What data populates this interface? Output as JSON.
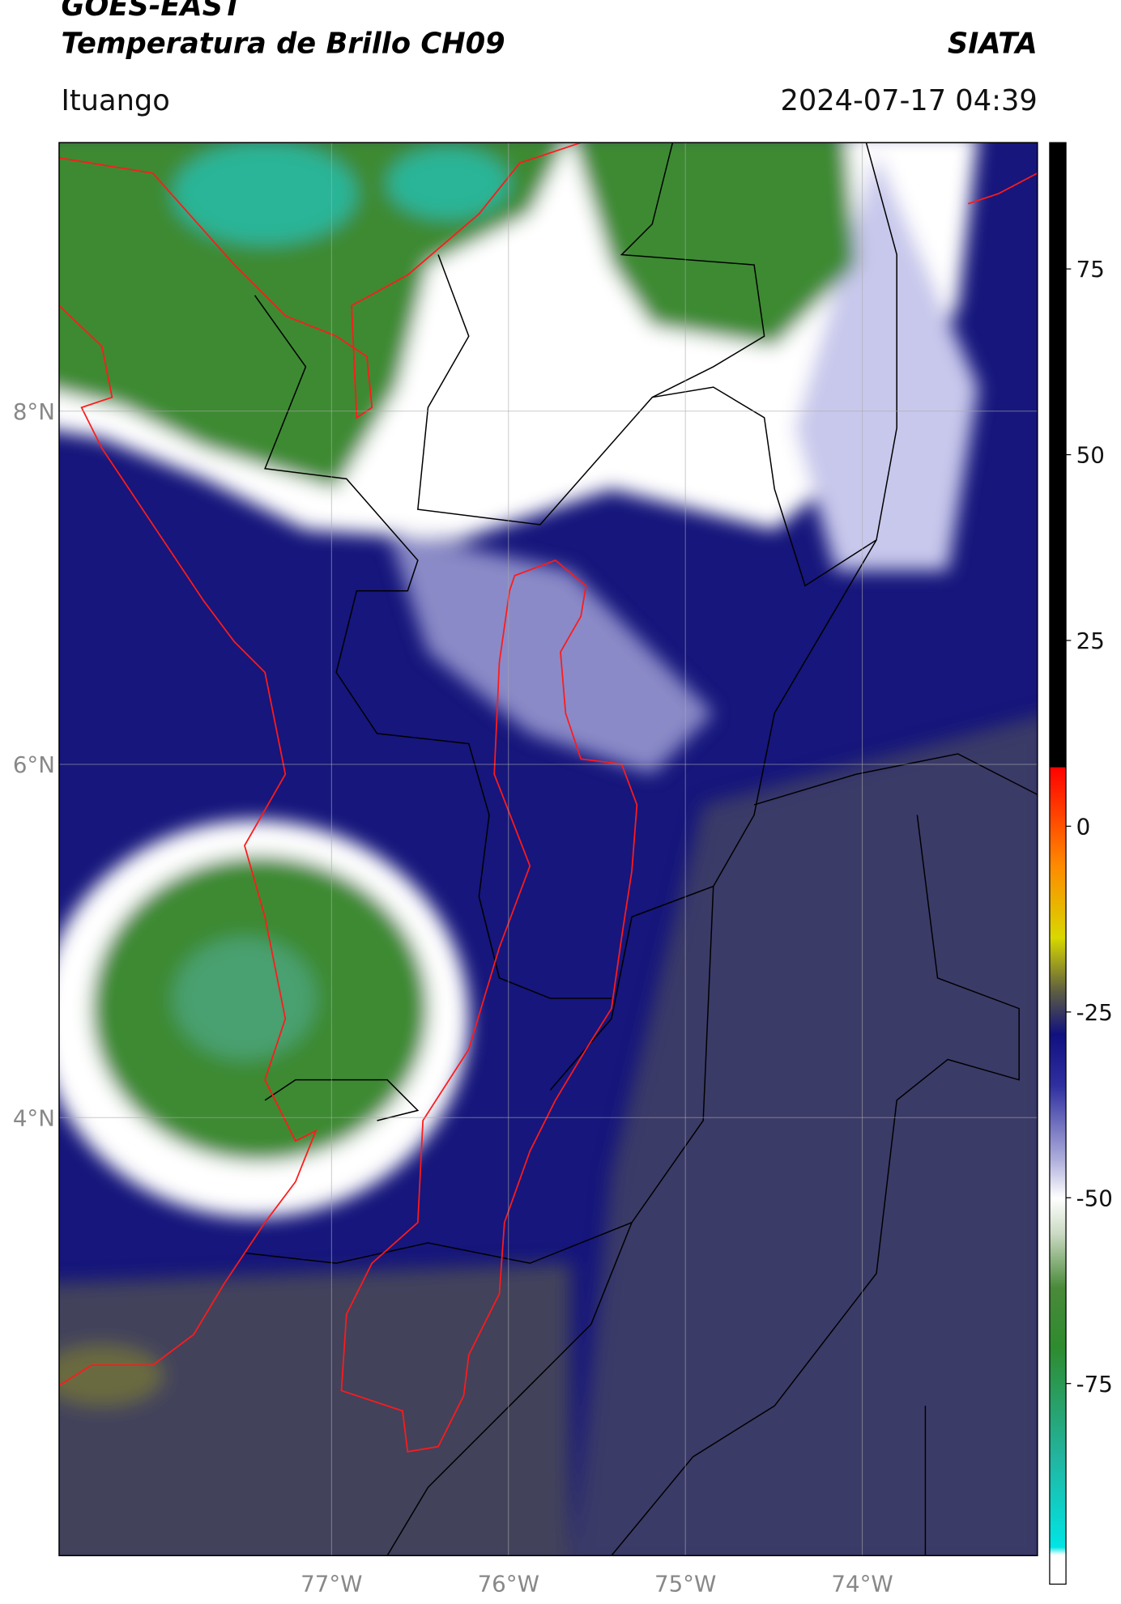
{
  "header": {
    "title": "GOES-EAST",
    "subtitle": "Temperatura de Brillo CH09",
    "brand": "SIATA",
    "location": "Ituango",
    "datetime": "2024-07-17 04:39"
  },
  "map": {
    "xlim": [
      -78.54,
      -73.01
    ],
    "ylim": [
      1.52,
      9.52
    ],
    "xticks": [
      {
        "value": -77,
        "label": "77°W"
      },
      {
        "value": -76,
        "label": "76°W"
      },
      {
        "value": -75,
        "label": "75°W"
      },
      {
        "value": -74,
        "label": "74°W"
      }
    ],
    "yticks": [
      {
        "value": 8,
        "label": "8°N"
      },
      {
        "value": 6,
        "label": "6°N"
      },
      {
        "value": 4,
        "label": "4°N"
      }
    ],
    "grid": true
  },
  "colorbar": {
    "lim": [
      -102,
      92
    ],
    "ticks": [
      75,
      50,
      25,
      0,
      -25,
      -50,
      -75
    ],
    "stops": [
      {
        "value": -102,
        "color": "#ffffff"
      },
      {
        "value": -98,
        "color": "#ffffff"
      },
      {
        "value": -97,
        "color": "#00e5e5"
      },
      {
        "value": -85,
        "color": "#22b5a0"
      },
      {
        "value": -70,
        "color": "#2e8b2e"
      },
      {
        "value": -62,
        "color": "#4a8a3a"
      },
      {
        "value": -55,
        "color": "#c8d8c0"
      },
      {
        "value": -50,
        "color": "#ffffff"
      },
      {
        "value": -45,
        "color": "#b0b0dd"
      },
      {
        "value": -35,
        "color": "#3030a0"
      },
      {
        "value": -28,
        "color": "#101080"
      },
      {
        "value": -22,
        "color": "#606040"
      },
      {
        "value": -15,
        "color": "#d8d800"
      },
      {
        "value": -5,
        "color": "#ff8800"
      },
      {
        "value": 8,
        "color": "#ff0000"
      },
      {
        "value": 8,
        "color": "#000000"
      },
      {
        "value": 92,
        "color": "#000000"
      }
    ]
  }
}
